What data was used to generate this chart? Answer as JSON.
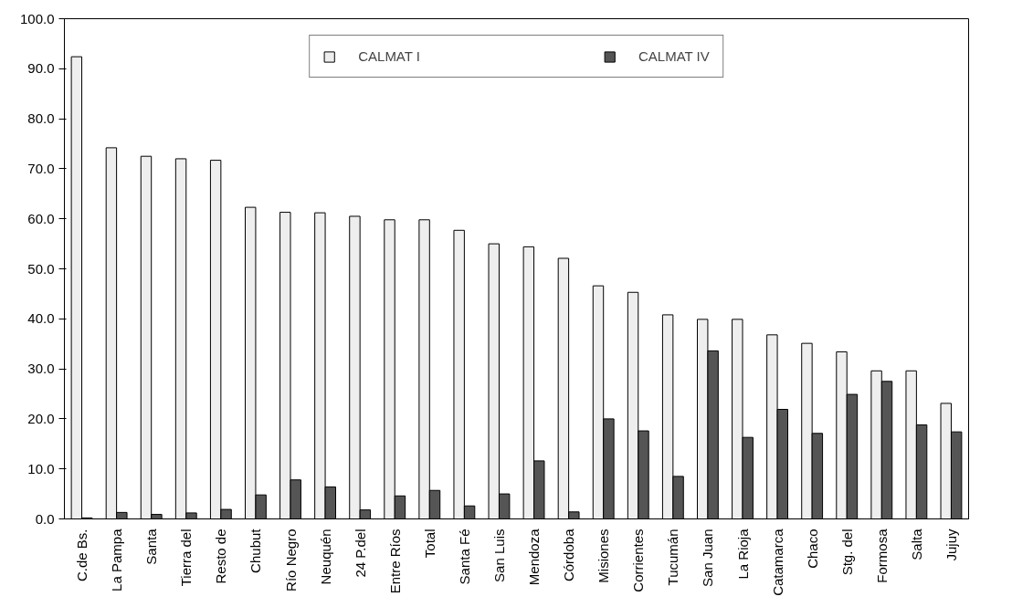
{
  "chart_data": {
    "type": "bar",
    "categories": [
      "C.de Bs.",
      "La Pampa",
      "Santa",
      "Tierra del",
      "Resto de",
      "Chubut",
      "Río Negro",
      "Neuquén",
      "24 P.del",
      "Entre Ríos",
      "Total",
      "Santa Fé",
      "San Luis",
      "Mendoza",
      "Córdoba",
      "Misiones",
      "Corrientes",
      "Tucumán",
      "San Juan",
      "La Rioja",
      "Catamarca",
      "Chaco",
      "Stg. del",
      "Formosa",
      "Salta",
      "Jujuy"
    ],
    "series": [
      {
        "name": "CALMAT I",
        "color": "#eeeeee",
        "values": [
          92.4,
          74.2,
          72.5,
          72.0,
          71.7,
          62.3,
          61.3,
          61.2,
          60.5,
          59.8,
          59.8,
          57.7,
          55.0,
          54.4,
          52.1,
          46.6,
          45.3,
          40.8,
          39.9,
          39.9,
          36.8,
          35.1,
          33.4,
          29.6,
          29.6,
          23.1
        ]
      },
      {
        "name": "CALMAT IV",
        "color": "#555555",
        "values": [
          0.2,
          1.3,
          0.9,
          1.2,
          1.9,
          4.8,
          7.8,
          6.4,
          1.8,
          4.6,
          5.7,
          2.6,
          5.0,
          11.6,
          1.4,
          20.0,
          17.6,
          8.5,
          33.6,
          16.3,
          21.9,
          17.1,
          24.9,
          27.5,
          18.8,
          17.4
        ]
      }
    ],
    "ylim": [
      0,
      100
    ],
    "yticks": [
      {
        "value": 0,
        "label": "0.0"
      },
      {
        "value": 10,
        "label": "10.0"
      },
      {
        "value": 20,
        "label": "20.0"
      },
      {
        "value": 30,
        "label": "30.0"
      },
      {
        "value": 40,
        "label": "40.0"
      },
      {
        "value": 50,
        "label": "50.0"
      },
      {
        "value": 60,
        "label": "60.0"
      },
      {
        "value": 70,
        "label": "70.0"
      },
      {
        "value": 80,
        "label": "80.0"
      },
      {
        "value": 90,
        "label": "90.0"
      },
      {
        "value": 100,
        "label": "100.0"
      }
    ],
    "grid": false,
    "legend": "top"
  }
}
